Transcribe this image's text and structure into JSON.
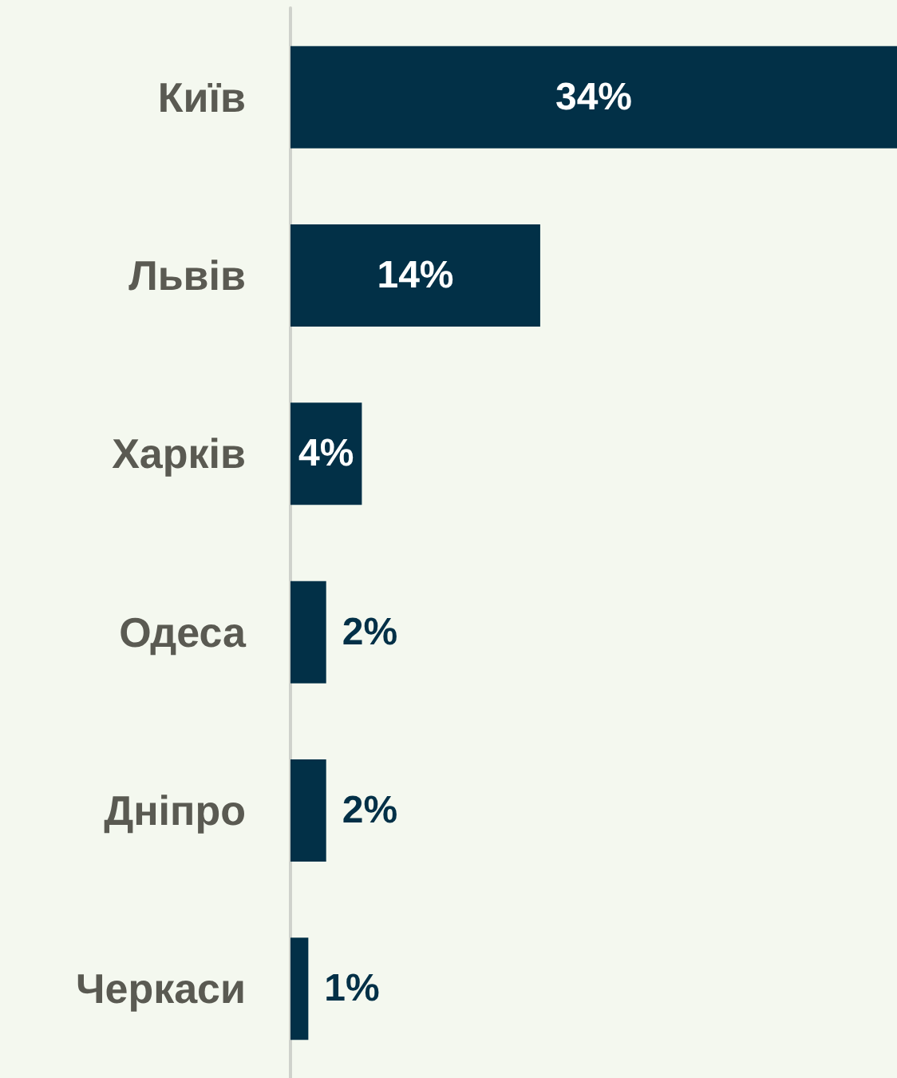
{
  "chart_data": {
    "type": "bar",
    "orientation": "horizontal",
    "categories": [
      "Київ",
      "Львів",
      "Харків",
      "Одеса",
      "Дніпро",
      "Черкаси"
    ],
    "values": [
      34,
      14,
      4,
      2,
      2,
      1
    ],
    "value_labels": [
      "34%",
      "14%",
      "4%",
      "2%",
      "2%",
      "1%"
    ],
    "color": "#023047"
  }
}
